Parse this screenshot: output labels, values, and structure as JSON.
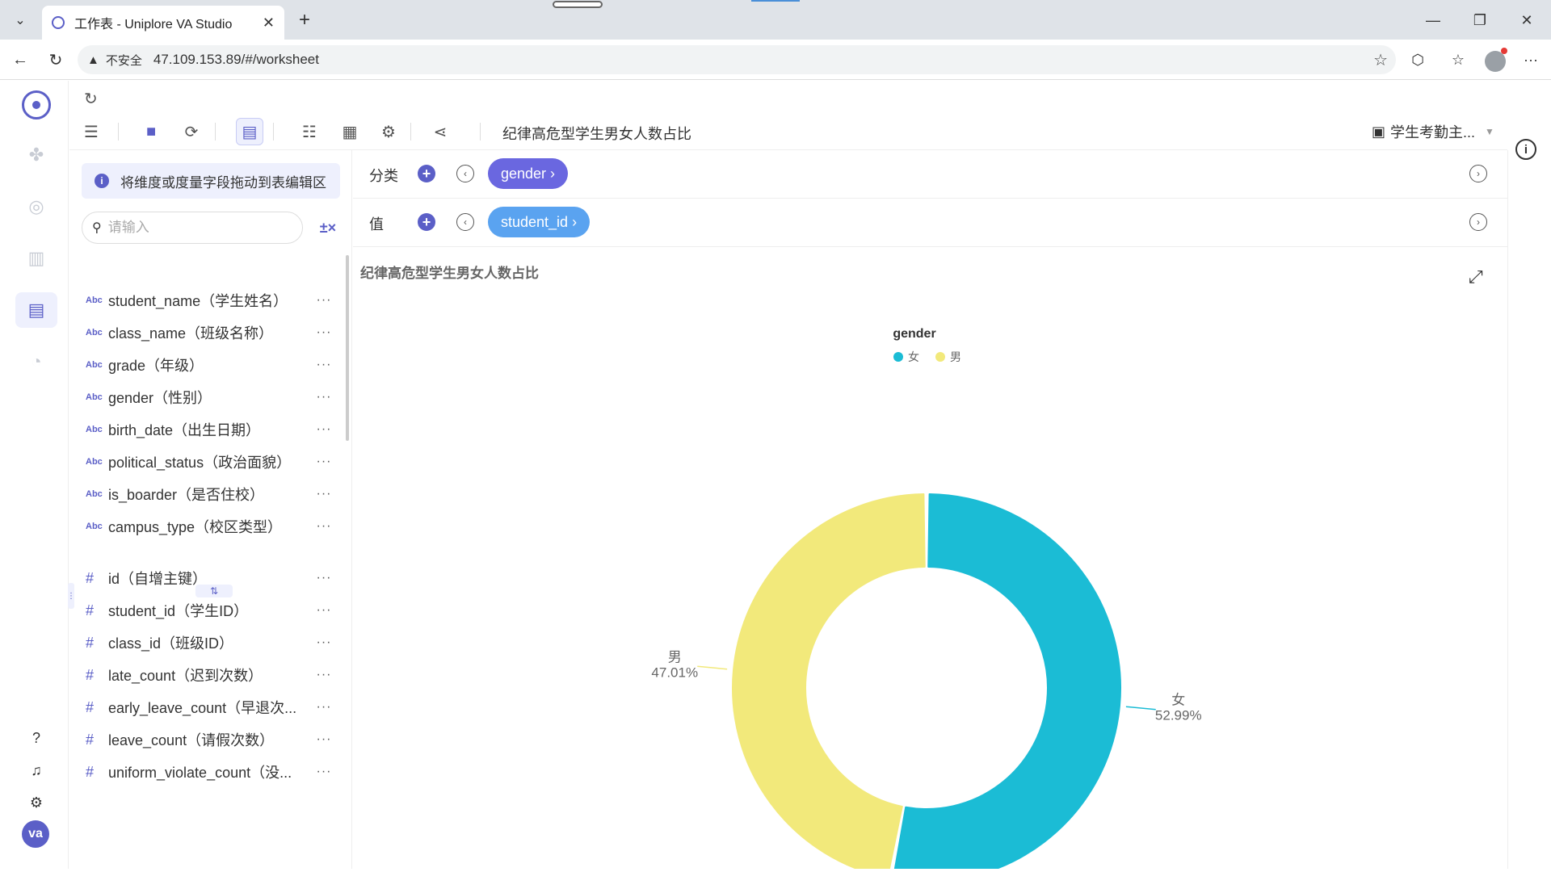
{
  "browser": {
    "tab_title": "工作表 - Uniplore VA Studio",
    "insecure_label": "不安全",
    "url": "47.109.153.89/#/worksheet"
  },
  "toolbar": {
    "worksheet_title": "纪律高危型学生男女人数占比",
    "datasource_label": "学生考勤主..."
  },
  "fields_panel": {
    "hint": "将维度或度量字段拖动到表编辑区",
    "search_placeholder": "请输入",
    "dimensions": [
      {
        "type": "Abc",
        "name": "student_name（学生姓名）"
      },
      {
        "type": "Abc",
        "name": "class_name（班级名称）"
      },
      {
        "type": "Abc",
        "name": "grade（年级）"
      },
      {
        "type": "Abc",
        "name": "gender（性别）"
      },
      {
        "type": "Abc",
        "name": "birth_date（出生日期）"
      },
      {
        "type": "Abc",
        "name": "political_status（政治面貌）"
      },
      {
        "type": "Abc",
        "name": "is_boarder（是否住校）"
      },
      {
        "type": "Abc",
        "name": "campus_type（校区类型）"
      }
    ],
    "measures": [
      {
        "type": "#",
        "name": "id（自增主键）"
      },
      {
        "type": "#",
        "name": "student_id（学生ID）"
      },
      {
        "type": "#",
        "name": "class_id（班级ID）"
      },
      {
        "type": "#",
        "name": "late_count（迟到次数）"
      },
      {
        "type": "#",
        "name": "early_leave_count（早退次..."
      },
      {
        "type": "#",
        "name": "leave_count（请假次数）"
      },
      {
        "type": "#",
        "name": "uniform_violate_count（没..."
      }
    ],
    "more_label": "···"
  },
  "shelves": {
    "category": {
      "label": "分类",
      "pill": "gender ›"
    },
    "value": {
      "label": "值",
      "pill": "student_id ›"
    }
  },
  "chart_data": {
    "type": "pie",
    "title": "纪律高危型学生男女人数占比",
    "legend_title": "gender",
    "legend_position": "top-center",
    "slices": [
      {
        "name": "女",
        "value": 52.99,
        "label": "52.99%",
        "color": "#1bbcd5"
      },
      {
        "name": "男",
        "value": 47.01,
        "label": "47.01%",
        "color": "#f2e97b"
      }
    ]
  },
  "rail": {
    "avatar_text": "va"
  }
}
